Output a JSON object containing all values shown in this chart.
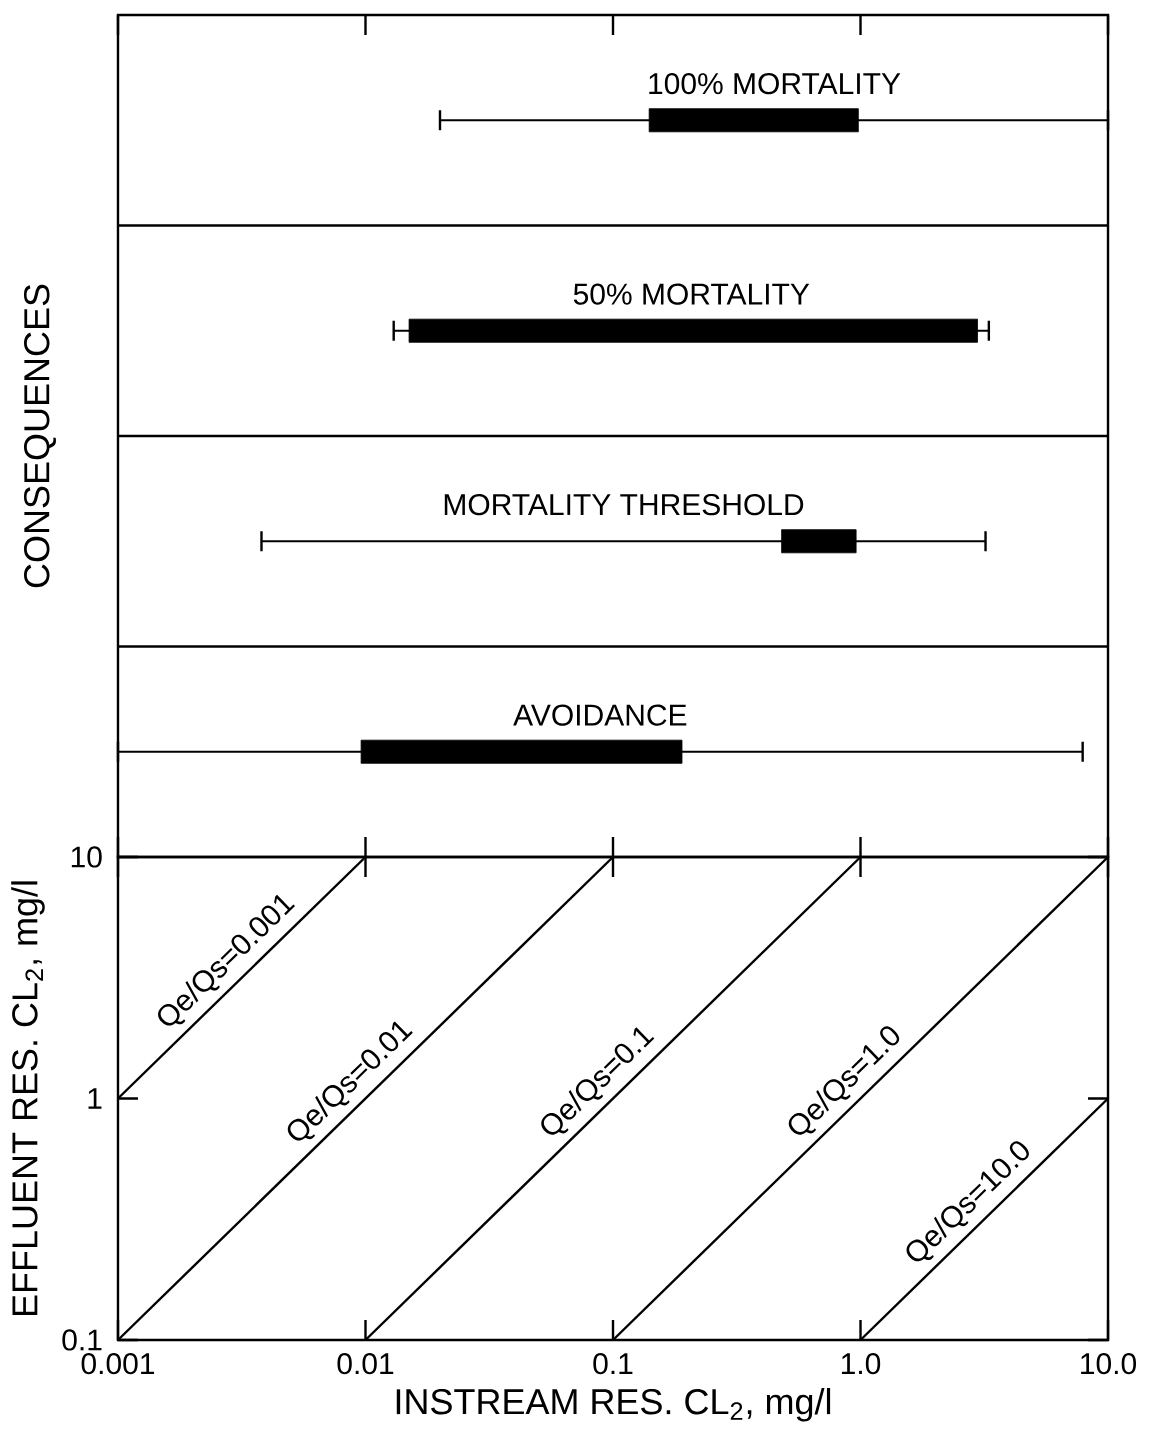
{
  "chart_data": [
    {
      "type": "bar",
      "orientation": "horizontal",
      "ylabel": "CONSEQUENCES",
      "log": "x",
      "grid": "y",
      "tick_labels": false,
      "color": "#000000",
      "categories": [
        "100% MORTALITY",
        "50% MORTALITY",
        "MORTALITY THRESHOLD",
        "AVOIDANCE"
      ],
      "base": [
        0.14,
        0.015,
        0.48,
        0.0096
      ],
      "values": [
        0.84,
        2.955,
        0.48,
        0.1804
      ],
      "errors": [
        [
          0.02,
          10
        ],
        [
          0.013,
          3.3
        ],
        [
          0.0038,
          3.2
        ],
        [
          0.001,
          7.9
        ]
      ],
      "xlim": [
        0.001,
        10
      ],
      "xticks": [
        0.001,
        0.01,
        0.1,
        1,
        10
      ]
    },
    {
      "type": "line",
      "xlabel": "INSTREAM RES. CL$_{2}$, mg/l",
      "ylabel": "EFFLUENT RES. CL$_{2}$, mg/l",
      "log": "xy",
      "xlim": [
        0.001,
        10
      ],
      "ylim": [
        0.1,
        10
      ],
      "xticks": [
        0.001,
        0.01,
        0.1,
        {
          "value": 1,
          "label": "1.0"
        },
        {
          "value": 10,
          "label": "10.0"
        }
      ],
      "yticks": [
        0.1,
        1,
        10
      ],
      "series": [
        {
          "name": "Qe/Qs=0.001",
          "color": "#000000",
          "x": [
            0.001,
            0.01
          ],
          "values": [
            1,
            10
          ]
        },
        {
          "name": "Qe/Qs=0.01",
          "color": "#000000",
          "x": [
            0.001,
            0.1
          ],
          "values": [
            0.1,
            10
          ]
        },
        {
          "name": "Qe/Qs=0.1",
          "color": "#000000",
          "x": [
            0.01,
            1
          ],
          "values": [
            0.1,
            10
          ]
        },
        {
          "name": "Qe/Qs=1.0",
          "color": "#000000",
          "x": [
            0.1,
            10
          ],
          "values": [
            0.1,
            10
          ]
        },
        {
          "name": "Qe/Qs=10.0",
          "color": "#000000",
          "x": [
            1,
            10
          ],
          "values": [
            0.1,
            1
          ]
        }
      ]
    }
  ]
}
